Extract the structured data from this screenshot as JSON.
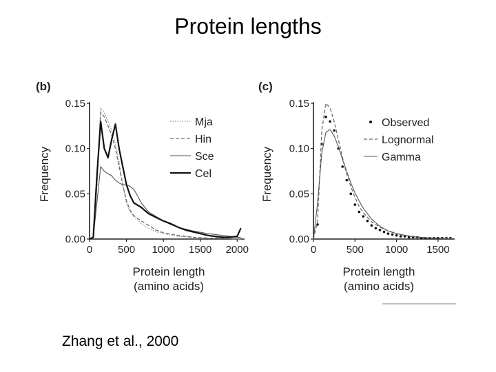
{
  "slide": {
    "title": "Protein lengths",
    "citation": "Zhang et al., 2000"
  },
  "chart_data": [
    {
      "type": "line",
      "panel_label": "(b)",
      "xlabel": "Protein length\n(amino acids)",
      "ylabel": "Frequency",
      "xlim": [
        0,
        2100
      ],
      "ylim": [
        0,
        0.15
      ],
      "xticks": [
        "0",
        "500",
        "1000",
        "1500",
        "2000"
      ],
      "xtick_values": [
        0,
        500,
        1000,
        1500,
        2000
      ],
      "yticks": [
        "0.00",
        "0.05",
        "0.10",
        "0.15"
      ],
      "ytick_values": [
        0,
        0.05,
        0.1,
        0.15
      ],
      "legend_position": "top-right",
      "series": [
        {
          "name": "Mja",
          "style": "dotted",
          "x": [
            0,
            50,
            100,
            150,
            200,
            250,
            300,
            350,
            400,
            450,
            500,
            550,
            600,
            700,
            800,
            900,
            1000,
            1200,
            1400,
            1600,
            1800,
            2000,
            2050
          ],
          "y": [
            0,
            0.002,
            0.06,
            0.145,
            0.14,
            0.13,
            0.12,
            0.105,
            0.085,
            0.06,
            0.04,
            0.03,
            0.025,
            0.017,
            0.012,
            0.008,
            0.006,
            0.003,
            0.002,
            0.001,
            0.001,
            0.0,
            0.0
          ]
        },
        {
          "name": "Hin",
          "style": "dashed",
          "x": [
            0,
            50,
            100,
            150,
            200,
            250,
            300,
            350,
            400,
            450,
            500,
            550,
            600,
            700,
            800,
            900,
            1000,
            1200,
            1400,
            1600,
            1800,
            2000,
            2050
          ],
          "y": [
            0,
            0.002,
            0.06,
            0.14,
            0.135,
            0.125,
            0.115,
            0.1,
            0.08,
            0.06,
            0.042,
            0.032,
            0.026,
            0.02,
            0.015,
            0.01,
            0.007,
            0.004,
            0.002,
            0.001,
            0.001,
            0.0,
            0.0
          ]
        },
        {
          "name": "Sce",
          "style": "solid-thin",
          "x": [
            0,
            50,
            100,
            150,
            200,
            250,
            300,
            350,
            400,
            450,
            500,
            550,
            600,
            650,
            700,
            800,
            900,
            1000,
            1100,
            1200,
            1400,
            1600,
            1800,
            2000,
            2050
          ],
          "y": [
            0,
            0.002,
            0.04,
            0.08,
            0.075,
            0.072,
            0.07,
            0.065,
            0.062,
            0.06,
            0.06,
            0.058,
            0.055,
            0.048,
            0.04,
            0.03,
            0.025,
            0.02,
            0.016,
            0.013,
            0.009,
            0.006,
            0.004,
            0.002,
            0.002
          ]
        },
        {
          "name": "Cel",
          "style": "solid-bold",
          "x": [
            0,
            50,
            100,
            150,
            200,
            250,
            300,
            350,
            400,
            450,
            500,
            550,
            600,
            700,
            800,
            900,
            1000,
            1100,
            1200,
            1300,
            1400,
            1500,
            1600,
            1700,
            1800,
            1900,
            2000,
            2050
          ],
          "y": [
            0,
            0.002,
            0.07,
            0.13,
            0.1,
            0.09,
            0.11,
            0.127,
            0.1,
            0.08,
            0.06,
            0.048,
            0.04,
            0.035,
            0.028,
            0.024,
            0.02,
            0.017,
            0.013,
            0.01,
            0.008,
            0.006,
            0.004,
            0.003,
            0.002,
            0.002,
            0.003,
            0.012
          ]
        }
      ]
    },
    {
      "type": "line",
      "panel_label": "(c)",
      "xlabel": "Protein length\n(amino acids)",
      "ylabel": "Frequency",
      "xlim": [
        0,
        1700
      ],
      "ylim": [
        0,
        0.15
      ],
      "xticks": [
        "0",
        "500",
        "1000",
        "1500"
      ],
      "xtick_values": [
        0,
        500,
        1000,
        1500
      ],
      "yticks": [
        "0.00",
        "0.05",
        "0.10",
        "0.15"
      ],
      "ytick_values": [
        0,
        0.05,
        0.1,
        0.15
      ],
      "legend_position": "top-right",
      "series": [
        {
          "name": "Observed",
          "style": "points",
          "x": [
            50,
            100,
            150,
            200,
            250,
            300,
            350,
            400,
            450,
            500,
            550,
            600,
            650,
            700,
            750,
            800,
            850,
            900,
            950,
            1000,
            1050,
            1100,
            1150,
            1200,
            1250,
            1300,
            1350,
            1400,
            1450,
            1500,
            1550,
            1600,
            1650
          ],
          "y": [
            0.016,
            0.105,
            0.135,
            0.13,
            0.12,
            0.1,
            0.08,
            0.065,
            0.05,
            0.038,
            0.03,
            0.025,
            0.02,
            0.015,
            0.012,
            0.01,
            0.008,
            0.006,
            0.005,
            0.004,
            0.003,
            0.003,
            0.002,
            0.002,
            0.002,
            0.001,
            0.001,
            0.001,
            0.001,
            0.001,
            0.001,
            0.001,
            0.001
          ]
        },
        {
          "name": "Lognormal",
          "style": "dashed",
          "x": [
            0,
            50,
            100,
            150,
            200,
            250,
            300,
            350,
            400,
            450,
            500,
            550,
            600,
            700,
            800,
            900,
            1000,
            1100,
            1200,
            1300,
            1400,
            1500,
            1600,
            1700
          ],
          "y": [
            0,
            0.02,
            0.12,
            0.15,
            0.145,
            0.13,
            0.11,
            0.09,
            0.072,
            0.058,
            0.046,
            0.036,
            0.029,
            0.019,
            0.013,
            0.009,
            0.006,
            0.004,
            0.003,
            0.002,
            0.0015,
            0.001,
            0.0007,
            0.0005
          ]
        },
        {
          "name": "Gamma",
          "style": "solid-thin",
          "x": [
            0,
            50,
            100,
            150,
            200,
            250,
            300,
            350,
            400,
            450,
            500,
            550,
            600,
            700,
            800,
            900,
            1000,
            1100,
            1200,
            1300,
            1400,
            1500,
            1600,
            1700
          ],
          "y": [
            0,
            0.04,
            0.095,
            0.118,
            0.121,
            0.114,
            0.102,
            0.088,
            0.075,
            0.062,
            0.051,
            0.042,
            0.034,
            0.022,
            0.014,
            0.009,
            0.006,
            0.004,
            0.0025,
            0.0016,
            0.001,
            0.0006,
            0.0004,
            0.0003
          ]
        }
      ]
    }
  ]
}
